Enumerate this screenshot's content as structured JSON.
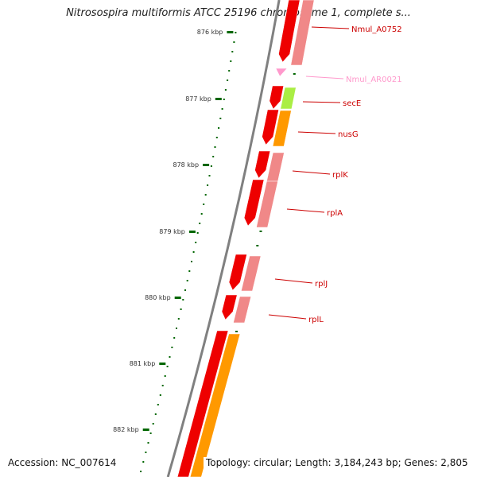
{
  "title": "Nitrosospira multiformis ATCC 25196 chromosome 1, complete s...",
  "accession": "Accession: NC_007614",
  "summary": "Topology: circular; Length: 3,184,243 bp; Genes: 2,805",
  "colors": {
    "backbone": "#808080",
    "cds_strand": "#ee0000",
    "cds_translucent": "#f08888",
    "rna": "#ff99cc",
    "cog_orange": "#ff9900",
    "cog_green": "#aaee44",
    "ruler": "#006600",
    "label_cds": "#cc0000",
    "label_rna": "#ff99cc"
  },
  "ruler_labels": [
    {
      "label": "876 kbp",
      "value_kbp": 876
    },
    {
      "label": "877 kbp",
      "value_kbp": 877
    },
    {
      "label": "878 kbp",
      "value_kbp": 878
    },
    {
      "label": "879 kbp",
      "value_kbp": 879
    },
    {
      "label": "880 kbp",
      "value_kbp": 880
    },
    {
      "label": "881 kbp",
      "value_kbp": 881
    },
    {
      "label": "882 kbp",
      "value_kbp": 882
    }
  ],
  "gene_labels": [
    {
      "label": "Nmul_A0752",
      "type": "CDS"
    },
    {
      "label": "Nmul_AR0021",
      "type": "RNA"
    },
    {
      "label": "secE",
      "type": "CDS"
    },
    {
      "label": "nusG",
      "type": "CDS"
    },
    {
      "label": "rplK",
      "type": "CDS"
    },
    {
      "label": "rplA",
      "type": "CDS"
    },
    {
      "label": "rplJ",
      "type": "CDS"
    },
    {
      "label": "rplL",
      "type": "CDS"
    }
  ]
}
